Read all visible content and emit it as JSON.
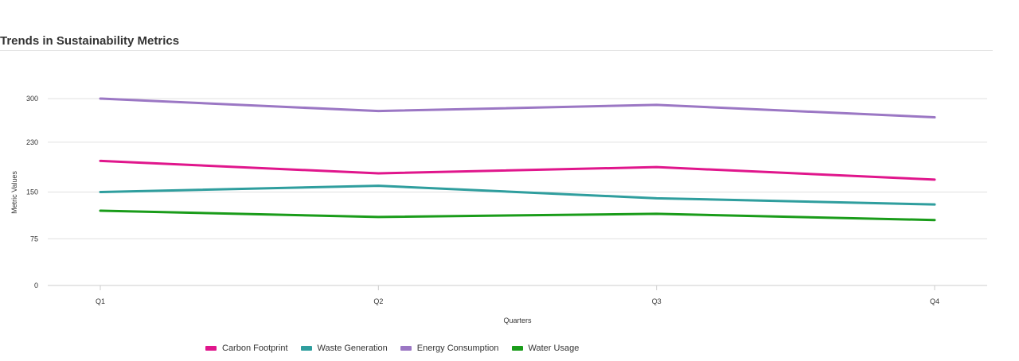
{
  "chart_data": {
    "type": "line",
    "title": "Trends in Sustainability Metrics",
    "xlabel": "Quarters",
    "ylabel": "Metric Values",
    "categories": [
      "Q1",
      "Q2",
      "Q3",
      "Q4"
    ],
    "yticks": [
      0,
      75,
      150,
      230,
      300
    ],
    "ylim": [
      0,
      300
    ],
    "grid": true,
    "legend_position": "bottom",
    "series": [
      {
        "name": "Carbon Footprint",
        "color": "#e0168c",
        "values": [
          200,
          180,
          190,
          170
        ]
      },
      {
        "name": "Waste Generation",
        "color": "#2f9e9e",
        "values": [
          150,
          160,
          140,
          130
        ]
      },
      {
        "name": "Energy Consumption",
        "color": "#9b77c4",
        "values": [
          300,
          280,
          290,
          270
        ]
      },
      {
        "name": "Water Usage",
        "color": "#1a9c1a",
        "values": [
          120,
          110,
          115,
          105
        ]
      }
    ]
  }
}
